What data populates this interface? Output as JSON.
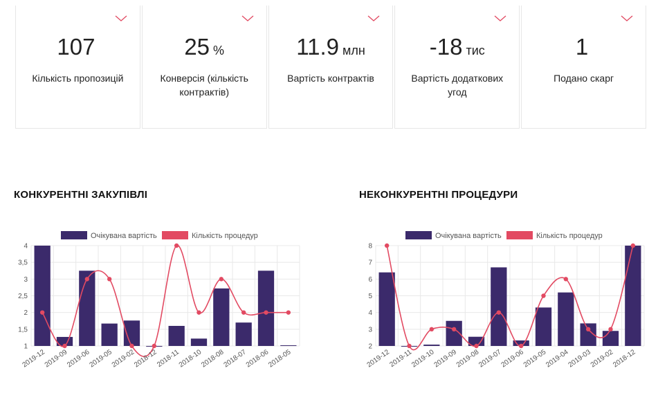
{
  "colors": {
    "bar": "#3b2a6b",
    "line": "#e24a62",
    "grid": "#e8e8e8",
    "chevron": "#e24a62"
  },
  "kpis": [
    {
      "value": "107",
      "unit": "",
      "label": "Кількість пропозицій"
    },
    {
      "value": "25",
      "unit": "%",
      "label": "Конверсія (кількість контрактів)"
    },
    {
      "value": "11.9",
      "unit": "млн",
      "label": "Вартість контрактів"
    },
    {
      "value": "-18",
      "unit": "тис",
      "label": "Вартість додаткових угод"
    },
    {
      "value": "1",
      "unit": "",
      "label": "Подано скарг"
    }
  ],
  "sections": {
    "competitive_title": "КОНКУРЕНТНІ ЗАКУПІВЛІ",
    "noncompetitive_title": "НЕКОНКУРЕНТНІ ПРОЦЕДУРИ"
  },
  "chart_data": [
    {
      "type": "bar",
      "legend_placement": "top-center",
      "grid": true,
      "categories": [
        "2019-12",
        "2019-09",
        "2019-06",
        "2019-05",
        "2019-02",
        "2018-12",
        "2018-11",
        "2018-10",
        "2018-08",
        "2018-07",
        "2018-06",
        "2018-05"
      ],
      "ylim": [
        1,
        4
      ],
      "yticks": [
        "1",
        "1,5",
        "2",
        "2,5",
        "3",
        "3,5",
        "4"
      ],
      "series": [
        {
          "name": "Очікувана вартість",
          "kind": "bar",
          "values": [
            4,
            1.27,
            3.25,
            1.67,
            1.76,
            1,
            1.6,
            1.22,
            2.72,
            1.7,
            3.25,
            1.02
          ]
        },
        {
          "name": "Кількість процедур",
          "kind": "line",
          "values": [
            2,
            1,
            3,
            3,
            1,
            1,
            4,
            2,
            3,
            2,
            2,
            2
          ]
        }
      ]
    },
    {
      "type": "bar",
      "legend_placement": "top-center",
      "grid": true,
      "categories": [
        "2019-12",
        "2019-11",
        "2019-10",
        "2019-09",
        "2019-08",
        "2019-07",
        "2019-06",
        "2019-05",
        "2019-04",
        "2019-03",
        "2019-02",
        "2018-12"
      ],
      "ylim": [
        2,
        8
      ],
      "yticks": [
        "2",
        "3",
        "4",
        "5",
        "6",
        "7",
        "8"
      ],
      "series": [
        {
          "name": "Очікувана вартість",
          "kind": "bar",
          "values": [
            6.4,
            2,
            2.08,
            3.5,
            2.55,
            6.7,
            2.33,
            4.3,
            5.2,
            3.35,
            2.9,
            8
          ]
        },
        {
          "name": "Кількість процедур",
          "kind": "line",
          "values": [
            8,
            2,
            3,
            3,
            2,
            4,
            2,
            5,
            6,
            3,
            3,
            8
          ]
        }
      ]
    }
  ]
}
